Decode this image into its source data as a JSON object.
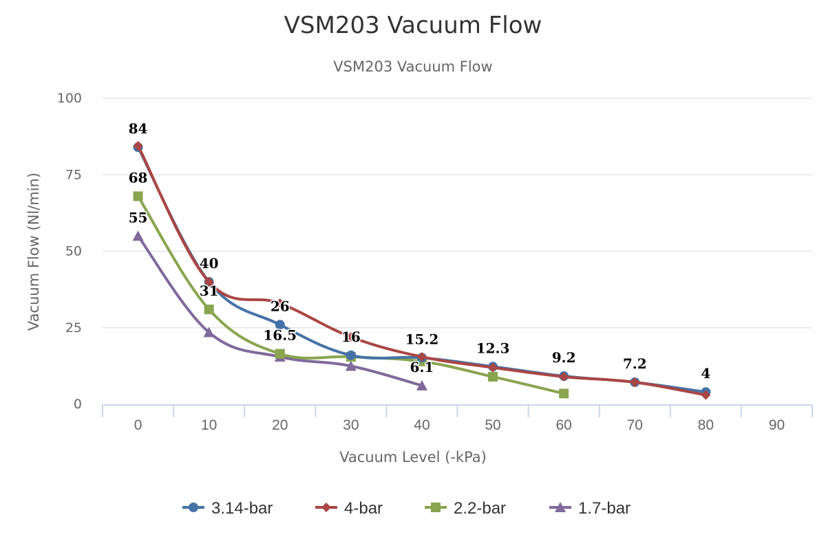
{
  "chart_data": {
    "type": "line",
    "title": "VSM203 Vacuum Flow",
    "subtitle": "VSM203 Vacuum Flow",
    "xlabel": "Vacuum Level (-kPa)",
    "ylabel": "Vacuum Flow (Nl/min)",
    "categories": [
      "0",
      "10",
      "20",
      "30",
      "40",
      "50",
      "60",
      "70",
      "80",
      "90"
    ],
    "ylim": [
      0,
      100
    ],
    "yticks": [
      0,
      25,
      50,
      75,
      100
    ],
    "grid": true,
    "smooth": true,
    "legend_position": "bottom-center",
    "series": [
      {
        "name": "3.14-bar",
        "color": "#4572a7",
        "marker": "circle",
        "values": [
          84,
          40,
          26,
          16,
          15.2,
          12.3,
          9.2,
          7.2,
          4,
          null
        ]
      },
      {
        "name": "4-bar",
        "color": "#aa4643",
        "marker": "diamond",
        "values": [
          84.5,
          40,
          33,
          22,
          15.5,
          12,
          9,
          7.2,
          3,
          null
        ]
      },
      {
        "name": "2.2-bar",
        "color": "#89a54e",
        "marker": "square",
        "values": [
          68,
          31,
          16.5,
          15.5,
          14,
          9,
          3.5,
          null,
          null,
          null
        ]
      },
      {
        "name": "1.7-bar",
        "color": "#80699b",
        "marker": "triangle",
        "values": [
          55,
          23.5,
          15.5,
          12.5,
          6.1,
          null,
          null,
          null,
          null,
          null
        ]
      }
    ],
    "data_labels": [
      {
        "category": "0",
        "value": 84,
        "text": "84"
      },
      {
        "category": "0",
        "value": 68,
        "text": "68"
      },
      {
        "category": "0",
        "value": 55,
        "text": "55"
      },
      {
        "category": "10",
        "value": 40,
        "text": "40"
      },
      {
        "category": "10",
        "value": 31,
        "text": "31"
      },
      {
        "category": "20",
        "value": 26,
        "text": "26"
      },
      {
        "category": "20",
        "value": 16.5,
        "text": "16.5"
      },
      {
        "category": "30",
        "value": 16,
        "text": "16"
      },
      {
        "category": "40",
        "value": 15.2,
        "text": "15.2"
      },
      {
        "category": "40",
        "value": 6.1,
        "text": "6.1"
      },
      {
        "category": "50",
        "value": 12.3,
        "text": "12.3"
      },
      {
        "category": "60",
        "value": 9.2,
        "text": "9.2"
      },
      {
        "category": "70",
        "value": 7.2,
        "text": "7.2"
      },
      {
        "category": "80",
        "value": 4,
        "text": "4"
      }
    ]
  }
}
